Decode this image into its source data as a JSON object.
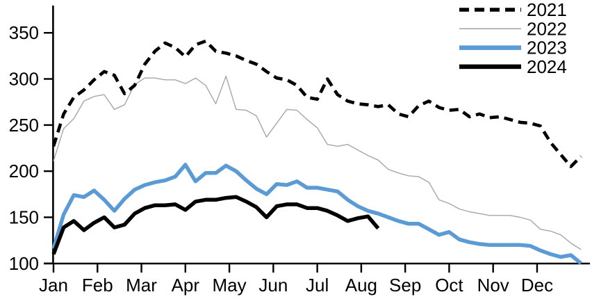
{
  "chart_data": {
    "type": "line",
    "title": "",
    "x_unit": "weekly points, Jan through Dec",
    "x_axis": {
      "ticks": [
        "Jan",
        "Feb",
        "Mar",
        "Apr",
        "May",
        "Jun",
        "Jul",
        "Aug",
        "Sep",
        "Oct",
        "Nov",
        "Dec"
      ]
    },
    "y_axis": {
      "ticks": [
        100,
        150,
        200,
        250,
        300,
        350
      ],
      "range": [
        100,
        380
      ],
      "grid": false
    },
    "legend": {
      "position": "top-right",
      "entries": [
        "2021",
        "2022",
        "2023",
        "2024"
      ]
    },
    "colors": {
      "black": "#000000",
      "gray": "#a6a6a6",
      "blue": "#5b9bd5"
    },
    "series": [
      {
        "name": "2021",
        "style": "dashed",
        "color": "#000000",
        "values": [
          227,
          262,
          280,
          288,
          299,
          308,
          304,
          284,
          293,
          316,
          330,
          339,
          334,
          324,
          337,
          341,
          330,
          328,
          325,
          320,
          316,
          308,
          301,
          299,
          293,
          280,
          278,
          300,
          283,
          276,
          273,
          272,
          270,
          272,
          262,
          259,
          271,
          276,
          269,
          266,
          267,
          259,
          262,
          258,
          259,
          256,
          253,
          252,
          249,
          231,
          218,
          205,
          216
        ]
      },
      {
        "name": "2022",
        "style": "thin",
        "color": "#a6a6a6",
        "values": [
          211,
          246,
          257,
          276,
          281,
          283,
          267,
          272,
          294,
          301,
          301,
          299,
          299,
          295,
          301,
          293,
          273,
          303,
          267,
          266,
          260,
          237,
          252,
          267,
          266,
          256,
          247,
          229,
          227,
          229,
          223,
          217,
          212,
          202,
          198,
          195,
          194,
          188,
          169,
          165,
          159,
          156,
          154,
          152,
          152,
          152,
          150,
          147,
          137,
          135,
          131,
          122,
          115
        ]
      },
      {
        "name": "2023",
        "style": "solid",
        "color": "#5b9bd5",
        "values": [
          116,
          153,
          174,
          172,
          179,
          169,
          157,
          170,
          180,
          185,
          188,
          190,
          194,
          207,
          189,
          198,
          198,
          206,
          200,
          190,
          181,
          175,
          186,
          185,
          189,
          182,
          182,
          180,
          178,
          169,
          162,
          157,
          154,
          150,
          146,
          143,
          143,
          137,
          131,
          134,
          126,
          123,
          121,
          120,
          120,
          120,
          120,
          119,
          114,
          110,
          107,
          109,
          100
        ]
      },
      {
        "name": "2024",
        "style": "solid",
        "color": "#000000",
        "values": [
          110,
          139,
          146,
          136,
          144,
          150,
          139,
          142,
          154,
          160,
          163,
          163,
          164,
          158,
          167,
          169,
          169,
          171,
          172,
          167,
          161,
          150,
          162,
          164,
          164,
          160,
          160,
          157,
          152,
          146,
          149,
          151,
          138
        ]
      }
    ]
  }
}
